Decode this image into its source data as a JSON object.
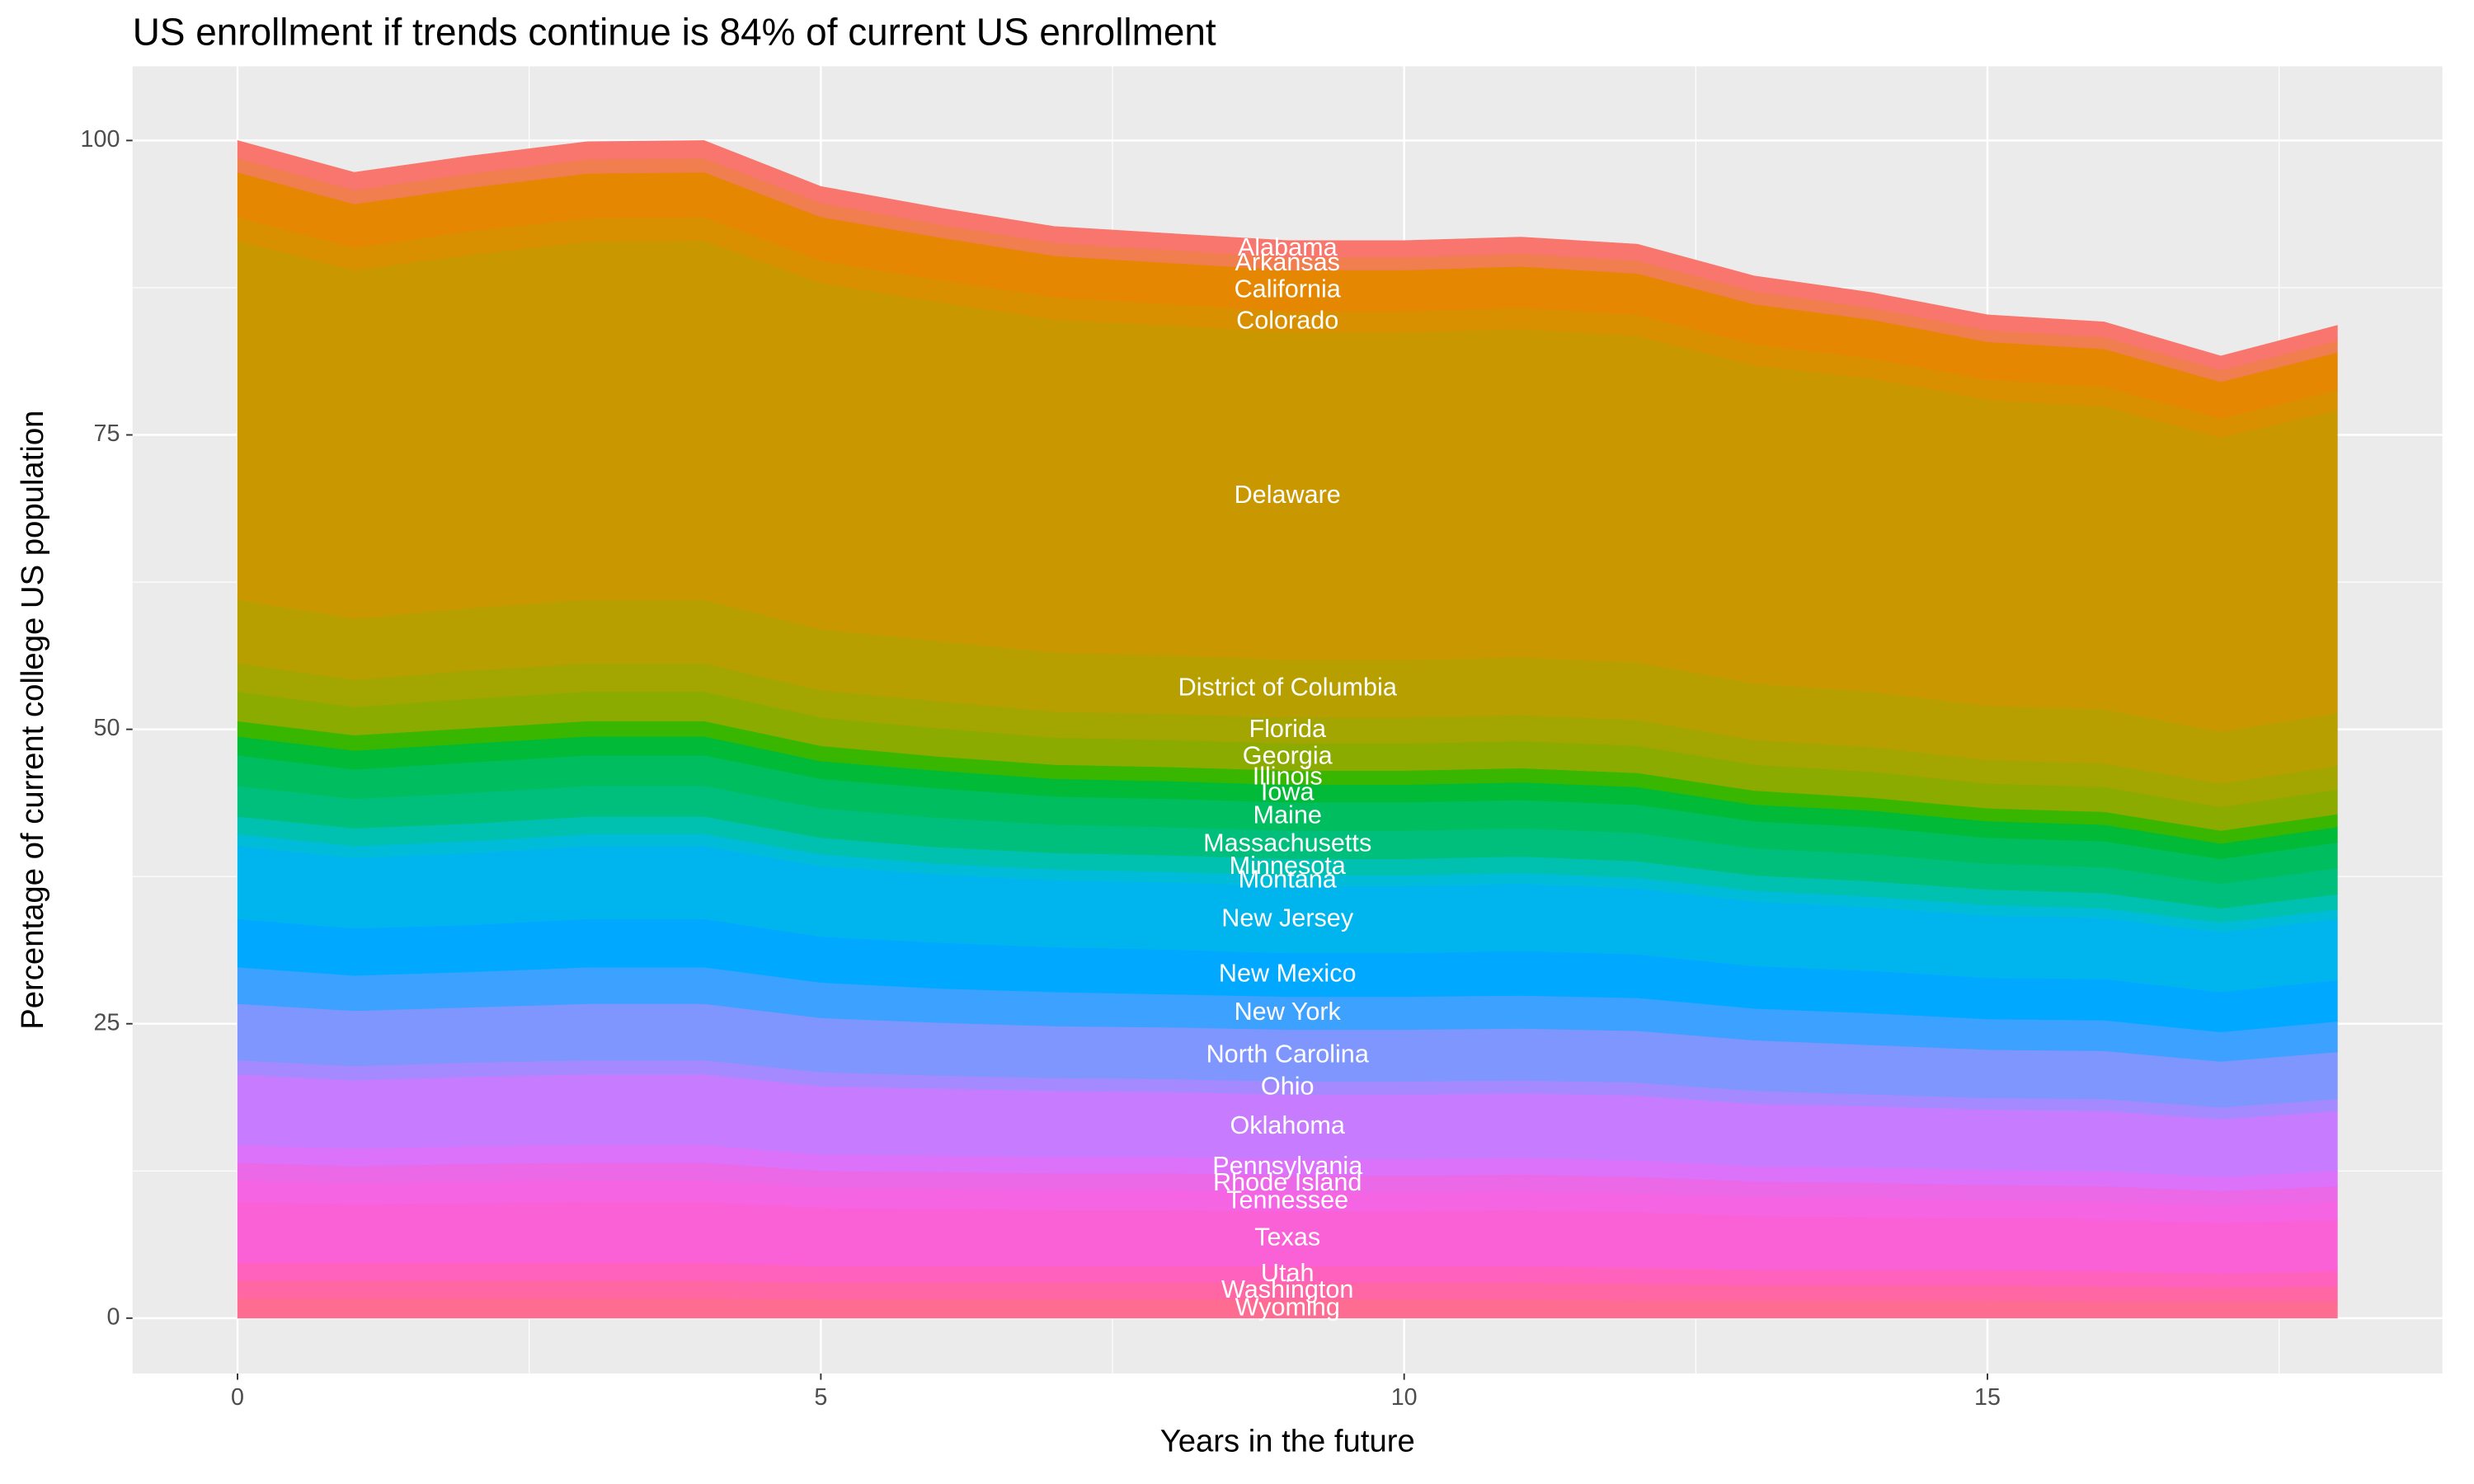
{
  "chart_data": {
    "type": "stacked-area",
    "title": "US enrollment if trends continue is 84% of current US enrollment",
    "xlabel": "Years in the future",
    "ylabel": "Percentage of current college US population",
    "x": [
      0,
      1,
      2,
      3,
      4,
      5,
      6,
      7,
      8,
      9,
      10,
      11,
      12,
      13,
      14,
      15,
      16,
      17,
      18
    ],
    "xlim": [
      -0.9,
      18.9
    ],
    "xticks": [
      0,
      5,
      10,
      15
    ],
    "ylim": [
      -4.7,
      106.3
    ],
    "yticks": [
      0,
      25,
      50,
      75,
      100
    ],
    "grid": true,
    "label_x": 9,
    "series": [
      {
        "name": "Alabama",
        "color": "#F8766D",
        "values": [
          1.5,
          1.5,
          1.5,
          1.5,
          1.5,
          1.4,
          1.4,
          1.4,
          1.4,
          1.4,
          1.4,
          1.4,
          1.4,
          1.3,
          1.3,
          1.3,
          1.3,
          1.2,
          1.3
        ]
      },
      {
        "name": "Arkansas",
        "color": "#F07E4E",
        "values": [
          1.2,
          1.2,
          1.2,
          1.2,
          1.2,
          1.2,
          1.1,
          1.1,
          1.1,
          1.1,
          1.1,
          1.1,
          1.1,
          1.1,
          1.0,
          1.0,
          1.0,
          1.0,
          1.0
        ]
      },
      {
        "name": "California",
        "color": "#E58700",
        "values": [
          3.8,
          3.7,
          3.7,
          3.8,
          3.8,
          3.7,
          3.6,
          3.5,
          3.5,
          3.5,
          3.5,
          3.5,
          3.5,
          3.4,
          3.3,
          3.2,
          3.2,
          3.1,
          3.2
        ]
      },
      {
        "name": "Colorado",
        "color": "#D89000",
        "values": [
          2.0,
          1.9,
          2.0,
          2.0,
          2.0,
          1.9,
          1.9,
          1.9,
          1.8,
          1.8,
          1.8,
          1.8,
          1.8,
          1.8,
          1.7,
          1.7,
          1.7,
          1.6,
          1.7
        ]
      },
      {
        "name": "Delaware",
        "color": "#C99800",
        "values": [
          30.5,
          29.6,
          30.0,
          30.4,
          30.5,
          29.4,
          28.8,
          28.3,
          28.0,
          27.8,
          27.8,
          27.9,
          27.7,
          27.0,
          26.6,
          26.0,
          25.7,
          25.0,
          25.7
        ]
      },
      {
        "name": "District of Columbia",
        "color": "#B79F00",
        "values": [
          5.4,
          5.2,
          5.3,
          5.4,
          5.4,
          5.2,
          5.1,
          5.0,
          5.0,
          4.9,
          4.9,
          4.9,
          4.9,
          4.8,
          4.7,
          4.6,
          4.6,
          4.4,
          4.5
        ]
      },
      {
        "name": "Florida",
        "color": "#A3A500",
        "values": [
          2.4,
          2.3,
          2.4,
          2.4,
          2.4,
          2.3,
          2.3,
          2.2,
          2.2,
          2.2,
          2.2,
          2.2,
          2.2,
          2.1,
          2.1,
          2.0,
          2.0,
          2.0,
          2.0
        ]
      },
      {
        "name": "Georgia",
        "color": "#8CAB00",
        "values": [
          2.5,
          2.4,
          2.5,
          2.5,
          2.5,
          2.4,
          2.4,
          2.3,
          2.3,
          2.3,
          2.3,
          2.3,
          2.3,
          2.2,
          2.2,
          2.1,
          2.1,
          2.0,
          2.1
        ]
      },
      {
        "name": "Illinois",
        "color": "#39B600",
        "values": [
          1.3,
          1.3,
          1.3,
          1.3,
          1.3,
          1.3,
          1.2,
          1.2,
          1.2,
          1.2,
          1.2,
          1.2,
          1.2,
          1.2,
          1.1,
          1.1,
          1.1,
          1.1,
          1.1
        ]
      },
      {
        "name": "Iowa",
        "color": "#00BA38",
        "values": [
          1.6,
          1.6,
          1.6,
          1.6,
          1.6,
          1.5,
          1.5,
          1.5,
          1.5,
          1.5,
          1.5,
          1.5,
          1.5,
          1.4,
          1.4,
          1.4,
          1.4,
          1.3,
          1.3
        ]
      },
      {
        "name": "Maine",
        "color": "#00BD5F",
        "values": [
          2.6,
          2.5,
          2.6,
          2.6,
          2.6,
          2.5,
          2.5,
          2.4,
          2.4,
          2.4,
          2.4,
          2.4,
          2.4,
          2.3,
          2.3,
          2.2,
          2.2,
          2.1,
          2.2
        ]
      },
      {
        "name": "Massachusetts",
        "color": "#00BF7D",
        "values": [
          2.6,
          2.5,
          2.6,
          2.6,
          2.6,
          2.5,
          2.5,
          2.4,
          2.4,
          2.4,
          2.4,
          2.4,
          2.4,
          2.3,
          2.3,
          2.2,
          2.2,
          2.1,
          2.2
        ]
      },
      {
        "name": "Minnesota",
        "color": "#00C0AF",
        "values": [
          1.5,
          1.5,
          1.5,
          1.5,
          1.5,
          1.4,
          1.4,
          1.4,
          1.4,
          1.4,
          1.4,
          1.4,
          1.4,
          1.3,
          1.3,
          1.3,
          1.3,
          1.2,
          1.3
        ]
      },
      {
        "name": "Montana",
        "color": "#00BCD8",
        "values": [
          1.0,
          1.0,
          1.0,
          1.0,
          1.0,
          1.0,
          0.9,
          0.9,
          0.9,
          0.9,
          0.9,
          0.9,
          0.9,
          0.9,
          0.9,
          0.9,
          0.8,
          0.8,
          0.8
        ]
      },
      {
        "name": "New Jersey",
        "color": "#00B5EE",
        "values": [
          6.2,
          6.0,
          6.1,
          6.2,
          6.2,
          6.0,
          5.8,
          5.7,
          5.7,
          5.7,
          5.7,
          5.7,
          5.6,
          5.5,
          5.4,
          5.3,
          5.2,
          5.1,
          5.2
        ]
      },
      {
        "name": "New Mexico",
        "color": "#00A9FF",
        "values": [
          4.1,
          4.0,
          4.0,
          4.1,
          4.1,
          3.9,
          3.9,
          3.8,
          3.8,
          3.7,
          3.7,
          3.8,
          3.7,
          3.6,
          3.6,
          3.5,
          3.5,
          3.4,
          3.5
        ]
      },
      {
        "name": "New York",
        "color": "#3DA1FF",
        "values": [
          3.1,
          3.0,
          3.0,
          3.1,
          3.1,
          3.0,
          2.9,
          2.9,
          2.8,
          2.8,
          2.8,
          2.8,
          2.8,
          2.7,
          2.7,
          2.6,
          2.6,
          2.5,
          2.6
        ]
      },
      {
        "name": "North Carolina",
        "color": "#7F96FF",
        "values": [
          4.8,
          4.7,
          4.7,
          4.8,
          4.8,
          4.6,
          4.5,
          4.4,
          4.4,
          4.4,
          4.4,
          4.4,
          4.4,
          4.3,
          4.2,
          4.1,
          4.1,
          3.9,
          4.0
        ]
      },
      {
        "name": "Ohio",
        "color": "#A58AFF",
        "values": [
          1.2,
          1.2,
          1.2,
          1.2,
          1.2,
          1.2,
          1.1,
          1.1,
          1.1,
          1.1,
          1.1,
          1.1,
          1.1,
          1.1,
          1.0,
          1.0,
          1.0,
          1.0,
          1.0
        ]
      },
      {
        "name": "Oklahoma",
        "color": "#C77CFF",
        "values": [
          6.0,
          5.8,
          5.9,
          6.0,
          6.0,
          5.8,
          5.7,
          5.6,
          5.5,
          5.5,
          5.5,
          5.5,
          5.5,
          5.3,
          5.2,
          5.1,
          5.1,
          4.9,
          5.1
        ]
      },
      {
        "name": "Pennsylvania",
        "color": "#DC71FA",
        "values": [
          1.5,
          1.5,
          1.5,
          1.5,
          1.5,
          1.4,
          1.4,
          1.4,
          1.4,
          1.4,
          1.4,
          1.4,
          1.4,
          1.3,
          1.3,
          1.3,
          1.3,
          1.2,
          1.3
        ]
      },
      {
        "name": "Rhode Island",
        "color": "#EB68E6",
        "values": [
          1.5,
          1.5,
          1.5,
          1.5,
          1.5,
          1.4,
          1.4,
          1.4,
          1.4,
          1.4,
          1.4,
          1.4,
          1.4,
          1.3,
          1.3,
          1.3,
          1.3,
          1.2,
          1.3
        ]
      },
      {
        "name": "Tennessee",
        "color": "#F564E3",
        "values": [
          1.8,
          1.7,
          1.8,
          1.8,
          1.8,
          1.7,
          1.7,
          1.7,
          1.7,
          1.6,
          1.6,
          1.6,
          1.6,
          1.6,
          1.6,
          1.5,
          1.5,
          1.5,
          1.5
        ]
      },
      {
        "name": "Texas",
        "color": "#FB61D7",
        "values": [
          5.2,
          5.0,
          5.1,
          5.2,
          5.2,
          5.0,
          4.9,
          4.8,
          4.8,
          4.7,
          4.7,
          4.8,
          4.7,
          4.6,
          4.5,
          4.4,
          4.4,
          4.3,
          4.4
        ]
      },
      {
        "name": "Utah",
        "color": "#FF62BC",
        "values": [
          1.5,
          1.5,
          1.5,
          1.5,
          1.5,
          1.4,
          1.4,
          1.4,
          1.4,
          1.4,
          1.4,
          1.4,
          1.4,
          1.3,
          1.3,
          1.3,
          1.3,
          1.2,
          1.3
        ]
      },
      {
        "name": "Washington",
        "color": "#FF67A4",
        "values": [
          1.5,
          1.5,
          1.5,
          1.5,
          1.5,
          1.4,
          1.4,
          1.4,
          1.4,
          1.4,
          1.4,
          1.4,
          1.4,
          1.3,
          1.3,
          1.3,
          1.3,
          1.2,
          1.3
        ]
      },
      {
        "name": "Wyoming",
        "color": "#FF6C91",
        "values": [
          1.7,
          1.7,
          1.7,
          1.7,
          1.7,
          1.6,
          1.6,
          1.6,
          1.6,
          1.6,
          1.6,
          1.6,
          1.5,
          1.5,
          1.5,
          1.5,
          1.4,
          1.4,
          1.4
        ]
      }
    ]
  }
}
